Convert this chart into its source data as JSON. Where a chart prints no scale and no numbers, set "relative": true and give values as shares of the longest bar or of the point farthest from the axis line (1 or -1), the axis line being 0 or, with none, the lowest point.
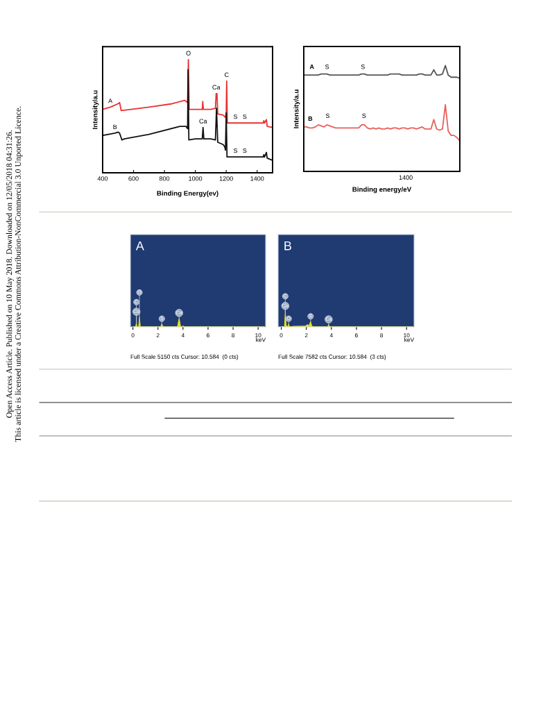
{
  "chart_data": [
    {
      "type": "line",
      "xlabel": "Binding Energy(ev)",
      "ylabel": "Intensity/a.u",
      "relative": true,
      "xlim": [
        400,
        1500
      ],
      "xticks": [
        400,
        600,
        800,
        1000,
        1200,
        1400
      ],
      "grid": false,
      "legend": false,
      "series": [
        {
          "color": "#e8312f",
          "x": [
            400,
            450,
            500,
            510,
            520,
            700,
            850,
            930,
            950,
            955,
            960,
            1000,
            1045,
            1048,
            1052,
            1100,
            1130,
            1135,
            1140,
            1145,
            1180,
            1195,
            1200,
            1203,
            1207,
            1260,
            1300,
            1320,
            1440,
            1443,
            1448,
            1460,
            1465,
            1500
          ],
          "values": [
            0.56,
            0.58,
            0.61,
            0.62,
            0.55,
            0.58,
            0.61,
            0.64,
            0.62,
            1.0,
            0.56,
            0.56,
            0.56,
            0.63,
            0.56,
            0.56,
            0.57,
            0.7,
            0.7,
            0.52,
            0.51,
            0.49,
            0.53,
            0.81,
            0.44,
            0.44,
            0.44,
            0.44,
            0.44,
            0.46,
            0.44,
            0.47,
            0.41,
            0.4
          ]
        },
        {
          "color": "#111111",
          "x": [
            400,
            480,
            500,
            510,
            525,
            540,
            700,
            900,
            940,
            950,
            953,
            958,
            1000,
            1045,
            1050,
            1055,
            1100,
            1130,
            1137,
            1145,
            1180,
            1190,
            1195,
            1200,
            1205,
            1260,
            1300,
            1320,
            1440,
            1443,
            1448,
            1460,
            1465,
            1500
          ],
          "values": [
            0.33,
            0.35,
            0.36,
            0.35,
            0.29,
            0.3,
            0.34,
            0.41,
            0.41,
            0.39,
            0.91,
            0.29,
            0.3,
            0.3,
            0.4,
            0.3,
            0.3,
            0.29,
            0.57,
            0.27,
            0.25,
            0.23,
            0.2,
            0.53,
            0.14,
            0.14,
            0.14,
            0.14,
            0.14,
            0.16,
            0.14,
            0.18,
            0.13,
            0.11
          ]
        }
      ],
      "annotations": [
        {
          "text": "A",
          "x": 450,
          "y": 0.58
        },
        {
          "text": "B",
          "x": 480,
          "y": 0.35
        },
        {
          "text": "O",
          "x": 955,
          "y": 1.0
        },
        {
          "text": "Ca",
          "x": 1135,
          "y": 0.7
        },
        {
          "text": "C",
          "x": 1203,
          "y": 0.81
        },
        {
          "text": "Ca",
          "x": 1050,
          "y": 0.4
        },
        {
          "text": "S",
          "x": 1260,
          "y": 0.44
        },
        {
          "text": "S",
          "x": 1320,
          "y": 0.44
        },
        {
          "text": "S",
          "x": 1260,
          "y": 0.14
        },
        {
          "text": "S",
          "x": 1320,
          "y": 0.14
        },
        "Open Access Article. Published on 10 May 2018. Downloaded on 12/05/2018 04:31:26.",
        "This article is licensed under a Creative Commons Attribution-NonCommercial 3.0 Unported Licence."
      ]
    },
    {
      "type": "line",
      "xlabel": "Binding energy/eV",
      "ylabel": "Intensity/a.u",
      "relative": true,
      "grid": false,
      "legend": false,
      "categories": [
        null,
        null,
        null,
        null,
        null,
        null,
        null,
        null,
        null,
        null,
        null,
        null,
        null,
        null,
        null,
        null,
        null,
        null,
        null,
        null,
        null,
        null,
        null,
        null,
        null,
        null,
        null,
        null,
        null,
        null,
        null,
        null,
        null,
        null,
        null,
        null,
        null,
        null,
        null,
        null,
        null,
        null,
        null,
        null,
        null,
        null,
        null,
        null,
        null,
        null,
        null,
        null,
        null,
        null,
        null
      ],
      "series": [
        {
          "color": "#555555",
          "values": [
            0.91,
            0.91,
            0.91,
            0.91,
            0.91,
            0.91,
            0.92,
            0.92,
            0.92,
            0.91,
            0.91,
            0.91,
            0.91,
            0.91,
            0.91,
            0.91,
            0.91,
            0.91,
            0.91,
            0.91,
            0.92,
            0.92,
            0.91,
            0.91,
            0.91,
            0.91,
            0.91,
            0.91,
            0.91,
            0.91,
            0.92,
            0.92,
            0.92,
            0.92,
            0.91,
            0.91,
            0.91,
            0.91,
            0.91,
            0.91,
            0.92,
            0.92,
            0.91,
            0.91,
            0.91,
            0.96,
            0.91,
            0.91,
            0.92,
            1.0,
            0.91,
            0.89,
            0.89,
            0.89,
            0.88
          ]
        },
        {
          "color": "#e8605a",
          "values": [
            0.42,
            0.42,
            0.41,
            0.41,
            0.42,
            0.44,
            0.43,
            0.42,
            0.44,
            0.43,
            0.42,
            0.41,
            0.41,
            0.41,
            0.41,
            0.41,
            0.41,
            0.41,
            0.41,
            0.41,
            0.44,
            0.44,
            0.41,
            0.4,
            0.41,
            0.4,
            0.41,
            0.4,
            0.4,
            0.41,
            0.4,
            0.41,
            0.41,
            0.4,
            0.41,
            0.41,
            0.4,
            0.41,
            0.41,
            0.4,
            0.41,
            0.42,
            0.4,
            0.4,
            0.4,
            0.49,
            0.4,
            0.39,
            0.4,
            0.63,
            0.38,
            0.34,
            0.34,
            0.32,
            0.29
          ]
        }
      ],
      "annotations": [
        "A",
        "S",
        "S",
        "B",
        "S",
        "S",
        "1400"
      ]
    },
    {
      "type": "area",
      "title": "A",
      "xlabel": "keV",
      "relative": true,
      "xlim": [
        -0.2,
        10.6
      ],
      "xticks": [
        0,
        2,
        4,
        6,
        8,
        10
      ],
      "grid": false,
      "legend": false,
      "series": [
        {
          "color": "#e8e020",
          "x": [
            0,
            0.2,
            0.28,
            0.34,
            0.45,
            0.52,
            0.6,
            2.2,
            2.31,
            2.42,
            3.55,
            3.69,
            3.82,
            3.95,
            4.01,
            4.08,
            10.5
          ],
          "values": [
            0,
            0,
            0.4,
            0,
            0,
            1.0,
            0,
            0,
            0.3,
            0,
            0,
            0.88,
            0,
            0,
            0.12,
            0,
            0
          ]
        }
      ],
      "annotations": [
        {
          "text": "Ca",
          "x": 0.28,
          "y": 0.4
        },
        {
          "text": "C",
          "x": 0.28,
          "y": 0.4
        },
        {
          "text": "O",
          "x": 0.52,
          "y": 1.0
        },
        {
          "text": "S",
          "x": 2.31,
          "y": 0.3
        },
        {
          "text": "Ca",
          "x": 3.69,
          "y": 0.88
        },
        "Full Scale 5150 cts Cursor: 10.584  (0 cts)"
      ]
    },
    {
      "type": "area",
      "title": "B",
      "xlabel": "keV",
      "relative": true,
      "xlim": [
        -0.25,
        10.6
      ],
      "xticks": [
        0,
        2,
        4,
        6,
        8,
        10
      ],
      "grid": false,
      "legend": false,
      "series": [
        {
          "color": "#e8e020",
          "x": [
            0,
            0.25,
            0.32,
            0.4,
            0.5,
            0.59,
            0.66,
            1.0,
            1.9,
            2.12,
            2.2,
            2.34,
            2.45,
            2.6,
            3.7,
            3.78,
            3.86,
            10.5
          ],
          "values": [
            0,
            0,
            1.0,
            0.1,
            0,
            0.19,
            0,
            0.04,
            0.05,
            0.15,
            0.07,
            0.34,
            0.04,
            0,
            0,
            0.15,
            0,
            0
          ]
        }
      ],
      "annotations": [
        {
          "text": "Ca",
          "x": 0.32,
          "y": 1.0
        },
        {
          "text": "C",
          "x": 0.32,
          "y": 1.0
        },
        {
          "text": "O",
          "x": 0.59,
          "y": 0.19
        },
        {
          "text": "S",
          "x": 2.34,
          "y": 0.34
        },
        {
          "text": "Ca",
          "x": 3.78,
          "y": 0.15
        },
        "Full Scale 7582 cts Cursor: 10.584  (3 cts)"
      ]
    }
  ]
}
